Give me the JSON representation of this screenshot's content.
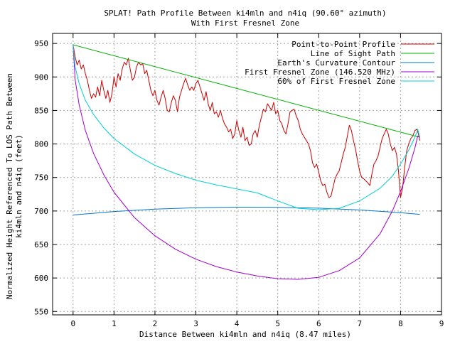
{
  "chart_data": {
    "type": "line",
    "title": "SPLAT! Path Profile Between ki4mln and n4iq (90.60° azimuth)",
    "subtitle": "With First Fresnel Zone",
    "xlabel": "Distance Between ki4mln and n4iq (8.47 miles)",
    "ylabel_line1": "Normalized Height Referenced To LOS Path Between",
    "ylabel_line2": "ki4mln and n4iq (feet)",
    "xlim": [
      -0.5,
      9
    ],
    "ylim": [
      545,
      965
    ],
    "xticks": [
      0,
      1,
      2,
      3,
      4,
      5,
      6,
      7,
      8,
      9
    ],
    "yticks": [
      550,
      600,
      650,
      700,
      750,
      800,
      850,
      900,
      950
    ],
    "grid": true,
    "legend_position": "top-right",
    "series": [
      {
        "name": "Point-to-Point Profile",
        "color": "#cc0000",
        "x": [
          0,
          0.05,
          0.1,
          0.15,
          0.2,
          0.25,
          0.3,
          0.35,
          0.4,
          0.45,
          0.5,
          0.55,
          0.6,
          0.65,
          0.7,
          0.75,
          0.8,
          0.85,
          0.9,
          0.95,
          1.0,
          1.05,
          1.1,
          1.15,
          1.2,
          1.25,
          1.3,
          1.35,
          1.4,
          1.45,
          1.5,
          1.55,
          1.6,
          1.65,
          1.7,
          1.75,
          1.8,
          1.85,
          1.9,
          1.95,
          2.0,
          2.05,
          2.1,
          2.15,
          2.2,
          2.25,
          2.3,
          2.35,
          2.4,
          2.45,
          2.5,
          2.55,
          2.6,
          2.65,
          2.7,
          2.75,
          2.8,
          2.85,
          2.9,
          2.95,
          3.0,
          3.05,
          3.1,
          3.15,
          3.2,
          3.25,
          3.3,
          3.35,
          3.4,
          3.45,
          3.5,
          3.55,
          3.6,
          3.65,
          3.7,
          3.75,
          3.8,
          3.85,
          3.9,
          3.95,
          4.0,
          4.05,
          4.1,
          4.15,
          4.2,
          4.25,
          4.3,
          4.35,
          4.4,
          4.45,
          4.5,
          4.55,
          4.6,
          4.65,
          4.7,
          4.75,
          4.8,
          4.85,
          4.9,
          4.95,
          5.0,
          5.05,
          5.1,
          5.15,
          5.2,
          5.25,
          5.3,
          5.35,
          5.4,
          5.45,
          5.5,
          5.55,
          5.6,
          5.65,
          5.7,
          5.75,
          5.8,
          5.85,
          5.9,
          5.95,
          6.0,
          6.05,
          6.1,
          6.15,
          6.2,
          6.25,
          6.3,
          6.35,
          6.4,
          6.45,
          6.5,
          6.55,
          6.6,
          6.65,
          6.7,
          6.75,
          6.8,
          6.85,
          6.9,
          6.95,
          7.0,
          7.05,
          7.1,
          7.15,
          7.2,
          7.25,
          7.3,
          7.35,
          7.4,
          7.45,
          7.5,
          7.55,
          7.6,
          7.65,
          7.7,
          7.75,
          7.8,
          7.85,
          7.9,
          7.95,
          8.0,
          8.05,
          8.1,
          8.15,
          8.2,
          8.25,
          8.3,
          8.35,
          8.4,
          8.45,
          8.47
        ],
        "y": [
          948,
          930,
          918,
          925,
          912,
          918,
          905,
          895,
          880,
          868,
          875,
          870,
          885,
          872,
          895,
          880,
          868,
          880,
          862,
          875,
          900,
          885,
          905,
          895,
          912,
          922,
          918,
          928,
          910,
          895,
          900,
          915,
          922,
          918,
          920,
          905,
          910,
          895,
          880,
          872,
          880,
          865,
          858,
          870,
          880,
          868,
          850,
          848,
          862,
          872,
          865,
          848,
          870,
          880,
          890,
          898,
          888,
          880,
          885,
          880,
          890,
          895,
          885,
          875,
          865,
          878,
          860,
          850,
          862,
          845,
          848,
          840,
          850,
          838,
          830,
          825,
          818,
          822,
          808,
          815,
          835,
          820,
          810,
          825,
          805,
          810,
          798,
          800,
          815,
          820,
          810,
          828,
          840,
          852,
          848,
          860,
          855,
          850,
          862,
          845,
          850,
          835,
          830,
          820,
          815,
          830,
          848,
          850,
          852,
          842,
          835,
          822,
          815,
          810,
          805,
          800,
          790,
          772,
          765,
          770,
          758,
          745,
          738,
          740,
          728,
          720,
          722,
          735,
          748,
          755,
          760,
          772,
          785,
          795,
          812,
          828,
          820,
          805,
          792,
          775,
          760,
          750,
          748,
          745,
          742,
          738,
          755,
          770,
          775,
          782,
          795,
          808,
          815,
          822,
          815,
          800,
          790,
          795,
          785,
          760,
          720,
          735,
          765,
          790,
          800,
          808,
          812,
          820,
          822,
          812,
          805
        ]
      },
      {
        "name": "Line of Sight Path",
        "color": "#00b000",
        "x": [
          0,
          8.47
        ],
        "y": [
          948,
          810
        ]
      },
      {
        "name": "Earth's Curvature Contour",
        "color": "#0077cc",
        "x": [
          0,
          1,
          2,
          3,
          4,
          4.235,
          5,
          6,
          7,
          8,
          8.47
        ],
        "y": [
          694,
          699.2,
          702.7,
          704.8,
          705.7,
          705.7,
          705.5,
          704.2,
          701.5,
          697.4,
          695
        ]
      },
      {
        "name": "First Fresnel Zone (146.520 MHz)",
        "color": "#a000d0",
        "x": [
          0,
          0.05,
          0.15,
          0.3,
          0.5,
          0.75,
          1.0,
          1.5,
          2.0,
          2.5,
          3.0,
          3.5,
          4.0,
          4.5,
          5.0,
          5.5,
          6.0,
          6.5,
          7.0,
          7.5,
          7.8,
          8.0,
          8.2,
          8.35,
          8.42,
          8.47
        ],
        "y": [
          948,
          896,
          858,
          820,
          786,
          754,
          728,
          690,
          663,
          643,
          628,
          617,
          609,
          603,
          599,
          598,
          601,
          611,
          630,
          666,
          700,
          729,
          763,
          794,
          812,
          810
        ]
      },
      {
        "name": "60% of First Fresnel Zone",
        "color": "#00d0d0",
        "x": [
          0,
          0.05,
          0.15,
          0.3,
          0.5,
          0.75,
          1.0,
          1.5,
          2.0,
          2.5,
          3.0,
          3.5,
          4.0,
          4.5,
          5.0,
          5.5,
          6.0,
          6.5,
          7.0,
          7.5,
          7.8,
          8.0,
          8.2,
          8.35,
          8.42,
          8.47
        ],
        "y": [
          948,
          915,
          890,
          865,
          844,
          824,
          808,
          785,
          768,
          756,
          746,
          739,
          733,
          727,
          715,
          704,
          702,
          704,
          715,
          734,
          752,
          770,
          791,
          810,
          822,
          810
        ]
      }
    ]
  }
}
